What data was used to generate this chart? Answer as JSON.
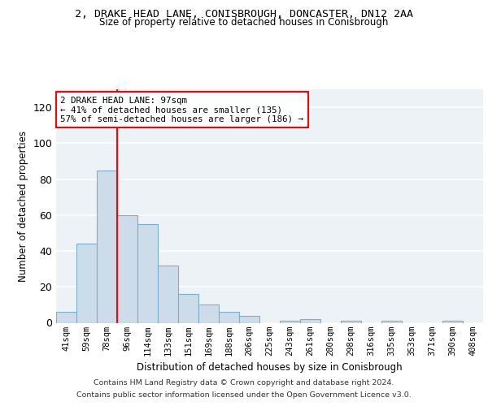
{
  "title_line1": "2, DRAKE HEAD LANE, CONISBROUGH, DONCASTER, DN12 2AA",
  "title_line2": "Size of property relative to detached houses in Conisbrough",
  "xlabel": "Distribution of detached houses by size in Conisbrough",
  "ylabel": "Number of detached properties",
  "bar_color": "#ccdce8",
  "bar_edge_color": "#7aafcf",
  "categories": [
    "41sqm",
    "59sqm",
    "78sqm",
    "96sqm",
    "114sqm",
    "133sqm",
    "151sqm",
    "169sqm",
    "188sqm",
    "206sqm",
    "225sqm",
    "243sqm",
    "261sqm",
    "280sqm",
    "298sqm",
    "316sqm",
    "335sqm",
    "353sqm",
    "371sqm",
    "390sqm",
    "408sqm"
  ],
  "values": [
    6,
    44,
    85,
    60,
    55,
    32,
    16,
    10,
    6,
    4,
    0,
    1,
    2,
    0,
    1,
    0,
    1,
    0,
    0,
    1,
    0
  ],
  "ylim": [
    0,
    130
  ],
  "yticks": [
    0,
    20,
    40,
    60,
    80,
    100,
    120
  ],
  "redline_bin_index": 2,
  "annotation_text": "2 DRAKE HEAD LANE: 97sqm\n← 41% of detached houses are smaller (135)\n57% of semi-detached houses are larger (186) →",
  "background_color": "#edf2f7",
  "grid_color": "#ffffff",
  "footer_line1": "Contains HM Land Registry data © Crown copyright and database right 2024.",
  "footer_line2": "Contains public sector information licensed under the Open Government Licence v3.0."
}
